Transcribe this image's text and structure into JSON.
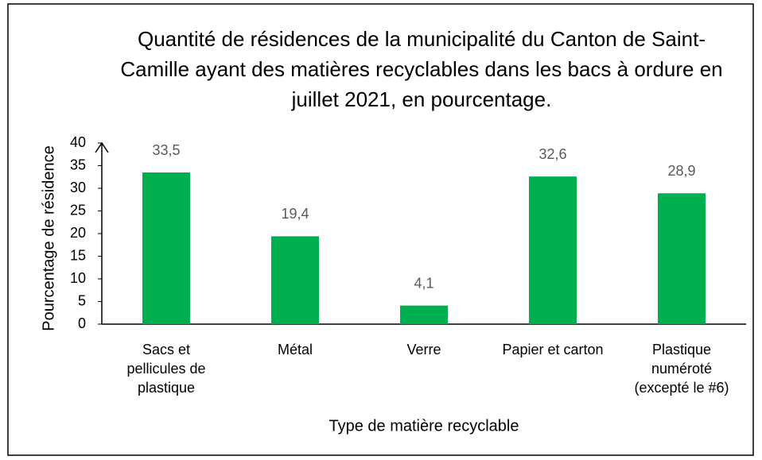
{
  "chart_data": {
    "type": "bar",
    "title": "Quantité de résidences de la municipalité du Canton de Saint-Camille ayant des matières recyclables dans les bacs à ordure en juillet 2021, en pourcentage.",
    "x_label": "Type de matière recyclable",
    "y_label": "Pourcentage de résidence",
    "categories": [
      "Sacs et pellicules de plastique",
      "Métal",
      "Verre",
      "Papier et carton",
      "Plastique numéroté (excepté le #6)"
    ],
    "values": [
      33.5,
      19.4,
      4.1,
      32.6,
      28.9
    ],
    "value_labels": [
      "33,5",
      "19,4",
      "4,1",
      "32,6",
      "28,9"
    ],
    "color": "#00b050",
    "ylim": [
      0,
      40
    ],
    "yticks": [
      0,
      5,
      10,
      15,
      20,
      25,
      30,
      35,
      40
    ]
  }
}
